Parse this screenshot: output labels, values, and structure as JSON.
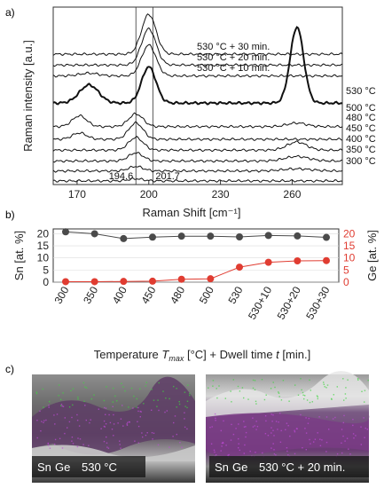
{
  "panel_labels": [
    "a)",
    "b)",
    "c)"
  ],
  "chart_data": [
    {
      "type": "line",
      "panel": "a)",
      "xlabel": "Raman Shift [cm⁻¹]",
      "ylabel": "Raman intensity [a.u.]",
      "xlim": [
        160,
        281
      ],
      "x_ticks": [
        170,
        200,
        230,
        260
      ],
      "x_tick_labels": [
        "170",
        "200",
        "230",
        "260"
      ],
      "reference_lines": [
        {
          "x": 194.6,
          "label": "194.6"
        },
        {
          "x": 201.7,
          "label": "201.7"
        }
      ],
      "series": [
        {
          "name": "300 °C",
          "baseline": 0.0,
          "bold": false,
          "peaks": [
            {
              "c": 194.6,
              "h": 0.12,
              "w": 3
            }
          ]
        },
        {
          "name": "350 °C",
          "baseline": 0.55,
          "bold": false,
          "peaks": [
            {
              "c": 194.6,
              "h": 0.25,
              "w": 3
            },
            {
              "c": 262,
              "h": 0.12,
              "w": 6
            }
          ]
        },
        {
          "name": "400 °C",
          "baseline": 1.1,
          "bold": false,
          "peaks": [
            {
              "c": 194.6,
              "h": 0.45,
              "w": 3
            },
            {
              "c": 262,
              "h": 0.25,
              "w": 5
            }
          ]
        },
        {
          "name": "450 °C",
          "baseline": 1.7,
          "bold": false,
          "peaks": [
            {
              "c": 194.6,
              "h": 0.7,
              "w": 3
            },
            {
              "c": 262,
              "h": 0.45,
              "w": 4
            }
          ]
        },
        {
          "name": "480 °C",
          "baseline": 2.3,
          "bold": false,
          "peaks": [
            {
              "c": 194.6,
              "h": 0.9,
              "w": 3
            },
            {
              "c": 171,
              "h": 0.35,
              "w": 3
            }
          ]
        },
        {
          "name": "500 °C",
          "baseline": 3.0,
          "bold": false,
          "peaks": [
            {
              "c": 194.6,
              "h": 0.7,
              "w": 3
            },
            {
              "c": 171,
              "h": 0.6,
              "w": 3
            },
            {
              "c": 262,
              "h": 0.2,
              "w": 4
            }
          ]
        },
        {
          "name": "530 °C",
          "baseline": 4.3,
          "bold": true,
          "peaks": [
            {
              "c": 175,
              "h": 1.0,
              "w": 4
            },
            {
              "c": 200,
              "h": 2.0,
              "w": 3
            },
            {
              "c": 262,
              "h": 4.2,
              "w": 2.8
            }
          ]
        },
        {
          "name": "530 °C + 10 min.",
          "baseline": 5.8,
          "bold": false,
          "peaks": [
            {
              "c": 200,
              "h": 1.7,
              "w": 3
            },
            {
              "c": 175,
              "h": 0.15,
              "w": 4
            }
          ]
        },
        {
          "name": "530 °C + 20 min.",
          "baseline": 6.4,
          "bold": false,
          "peaks": [
            {
              "c": 200,
              "h": 2.0,
              "w": 3
            }
          ]
        },
        {
          "name": "530 °C + 30 min.",
          "baseline": 7.0,
          "bold": false,
          "peaks": [
            {
              "c": 200,
              "h": 2.2,
              "w": 3
            }
          ]
        }
      ]
    },
    {
      "type": "line",
      "panel": "b)",
      "xlabel": "Temperature T_max [°C] + Dwell time t [min.]",
      "xlabel_parts": {
        "pre": "Temperature ",
        "t_sym": "T",
        "t_sub": "max",
        "mid": " [°C] + Dwell time ",
        "d_sym": "t",
        "post": " [min.]"
      },
      "categories": [
        "300",
        "350",
        "400",
        "450",
        "480",
        "500",
        "530",
        "530+10",
        "530+20",
        "530+30"
      ],
      "left_axis": {
        "label": "Sn [at. %]",
        "ylim": [
          0,
          22
        ],
        "ticks": [
          0,
          5,
          10,
          15,
          20
        ],
        "color": "#333333"
      },
      "right_axis": {
        "label": "Ge [at. %]",
        "ylim": [
          0,
          22
        ],
        "ticks": [
          0,
          5,
          10,
          15,
          20
        ],
        "color": "#e03c31"
      },
      "grid": true,
      "series": [
        {
          "name": "Sn",
          "axis": "left",
          "color": "#4a4a4a",
          "values": [
            20.8,
            20.0,
            18.0,
            18.6,
            19.0,
            19.0,
            18.7,
            19.3,
            19.1,
            18.5
          ]
        },
        {
          "name": "Ge",
          "axis": "right",
          "color": "#e03c31",
          "values": [
            0.2,
            0.2,
            0.3,
            0.4,
            1.2,
            1.4,
            6.2,
            8.2,
            8.8,
            8.9
          ]
        }
      ]
    }
  ],
  "micrographs": [
    {
      "sn_label": "Sn",
      "ge_label": "Ge",
      "caption": "530 °C",
      "sn_color": "#c04ad8",
      "ge_color": "#3fd43f"
    },
    {
      "sn_label": "Sn",
      "ge_label": "Ge",
      "caption": "530 °C + 20 min.",
      "sn_color": "#c04ad8",
      "ge_color": "#3fd43f"
    }
  ]
}
